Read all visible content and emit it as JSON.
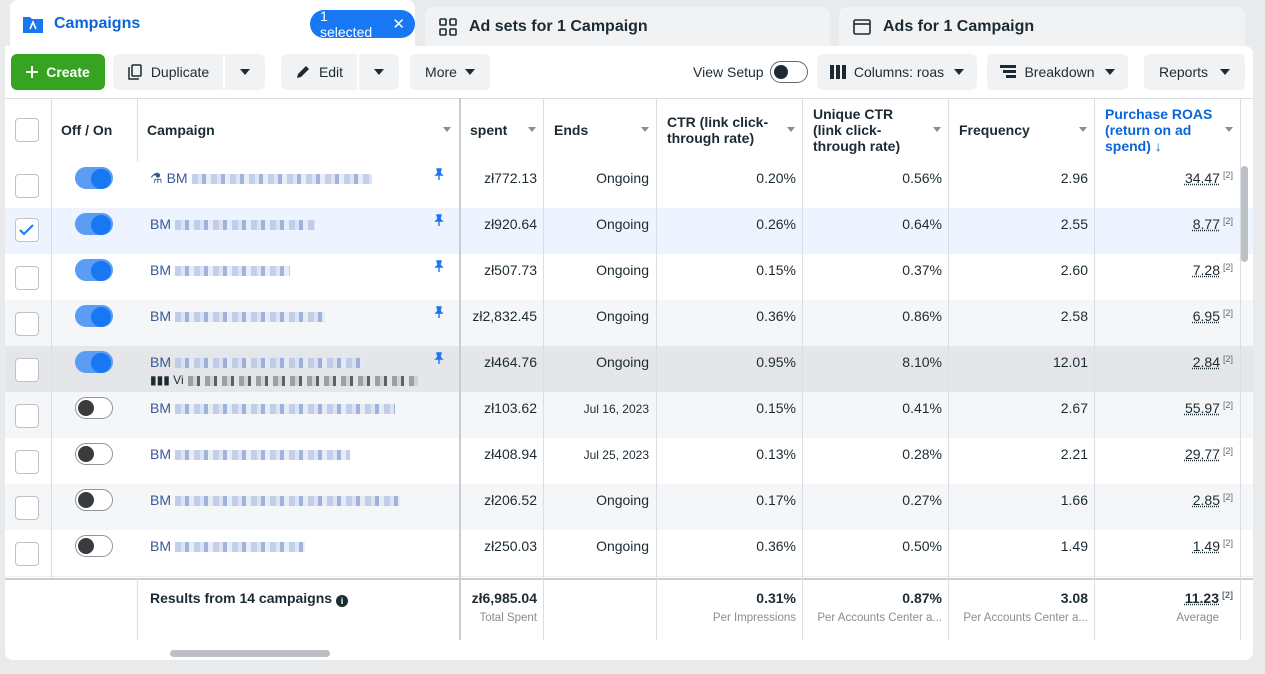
{
  "tabs": {
    "campaigns": "Campaigns",
    "selected_pill": "1 selected",
    "adsets": "Ad sets for 1 Campaign",
    "ads": "Ads for 1 Campaign"
  },
  "toolbar": {
    "create": "Create",
    "duplicate": "Duplicate",
    "edit": "Edit",
    "more": "More",
    "view_setup": "View Setup",
    "columns": "Columns: roas",
    "breakdown": "Breakdown",
    "reports": "Reports"
  },
  "columns": {
    "offon": "Off / On",
    "campaign": "Campaign",
    "spent": "spent",
    "ends": "Ends",
    "ctr": "CTR (link click-through rate)",
    "unique_ctr": "Unique CTR (link click-through rate)",
    "frequency": "Frequency",
    "roas": "Purchase ROAS (return on ad spend)"
  },
  "rows": [
    {
      "name": "BM",
      "on": true,
      "checked": false,
      "spent": "zł772.13",
      "ends": "Ongoing",
      "ctr": "0.20%",
      "uctr": "0.56%",
      "freq": "2.96",
      "roas": "34.47",
      "sup": "[2]"
    },
    {
      "name": "BM",
      "on": true,
      "checked": true,
      "spent": "zł920.64",
      "ends": "Ongoing",
      "ctr": "0.26%",
      "uctr": "0.64%",
      "freq": "2.55",
      "roas": "8.77",
      "sup": "[2]"
    },
    {
      "name": "BM",
      "on": true,
      "checked": false,
      "spent": "zł507.73",
      "ends": "Ongoing",
      "ctr": "0.15%",
      "uctr": "0.37%",
      "freq": "2.60",
      "roas": "7.28",
      "sup": "[2]"
    },
    {
      "name": "BM",
      "on": true,
      "checked": false,
      "spent": "zł2,832.45",
      "ends": "Ongoing",
      "ctr": "0.36%",
      "uctr": "0.86%",
      "freq": "2.58",
      "roas": "6.95",
      "sup": "[2]"
    },
    {
      "name": "BM",
      "sub": "Vi",
      "on": true,
      "checked": false,
      "spent": "zł464.76",
      "ends": "Ongoing",
      "ctr": "0.95%",
      "uctr": "8.10%",
      "freq": "12.01",
      "roas": "2.84",
      "sup": "[2]"
    },
    {
      "name": "BM",
      "on": false,
      "checked": false,
      "spent": "zł103.62",
      "ends": "Jul 16, 2023",
      "ctr": "0.15%",
      "uctr": "0.41%",
      "freq": "2.67",
      "roas": "55.97",
      "sup": "[2]"
    },
    {
      "name": "BM",
      "on": false,
      "checked": false,
      "spent": "zł408.94",
      "ends": "Jul 25, 2023",
      "ctr": "0.13%",
      "uctr": "0.28%",
      "freq": "2.21",
      "roas": "29.77",
      "sup": "[2]"
    },
    {
      "name": "BM",
      "on": false,
      "checked": false,
      "spent": "zł206.52",
      "ends": "Ongoing",
      "ctr": "0.17%",
      "uctr": "0.27%",
      "freq": "1.66",
      "roas": "2.85",
      "sup": "[2]"
    },
    {
      "name": "BM",
      "on": false,
      "checked": false,
      "spent": "zł250.03",
      "ends": "Ongoing",
      "ctr": "0.36%",
      "uctr": "0.50%",
      "freq": "1.49",
      "roas": "1.49",
      "sup": "[2]"
    }
  ],
  "footer": {
    "results": "Results from 14 campaigns",
    "spent": "zł6,985.04",
    "spent_sub": "Total Spent",
    "ctr": "0.31%",
    "ctr_sub": "Per Impressions",
    "uctr": "0.87%",
    "uctr_sub": "Per Accounts Center a...",
    "freq": "3.08",
    "freq_sub": "Per Accounts Center a...",
    "roas": "11.23",
    "roas_sup": "[2]",
    "roas_sub": "Average"
  },
  "colors": {
    "accent": "#1877f2",
    "create": "#36a420",
    "link": "#385898"
  }
}
